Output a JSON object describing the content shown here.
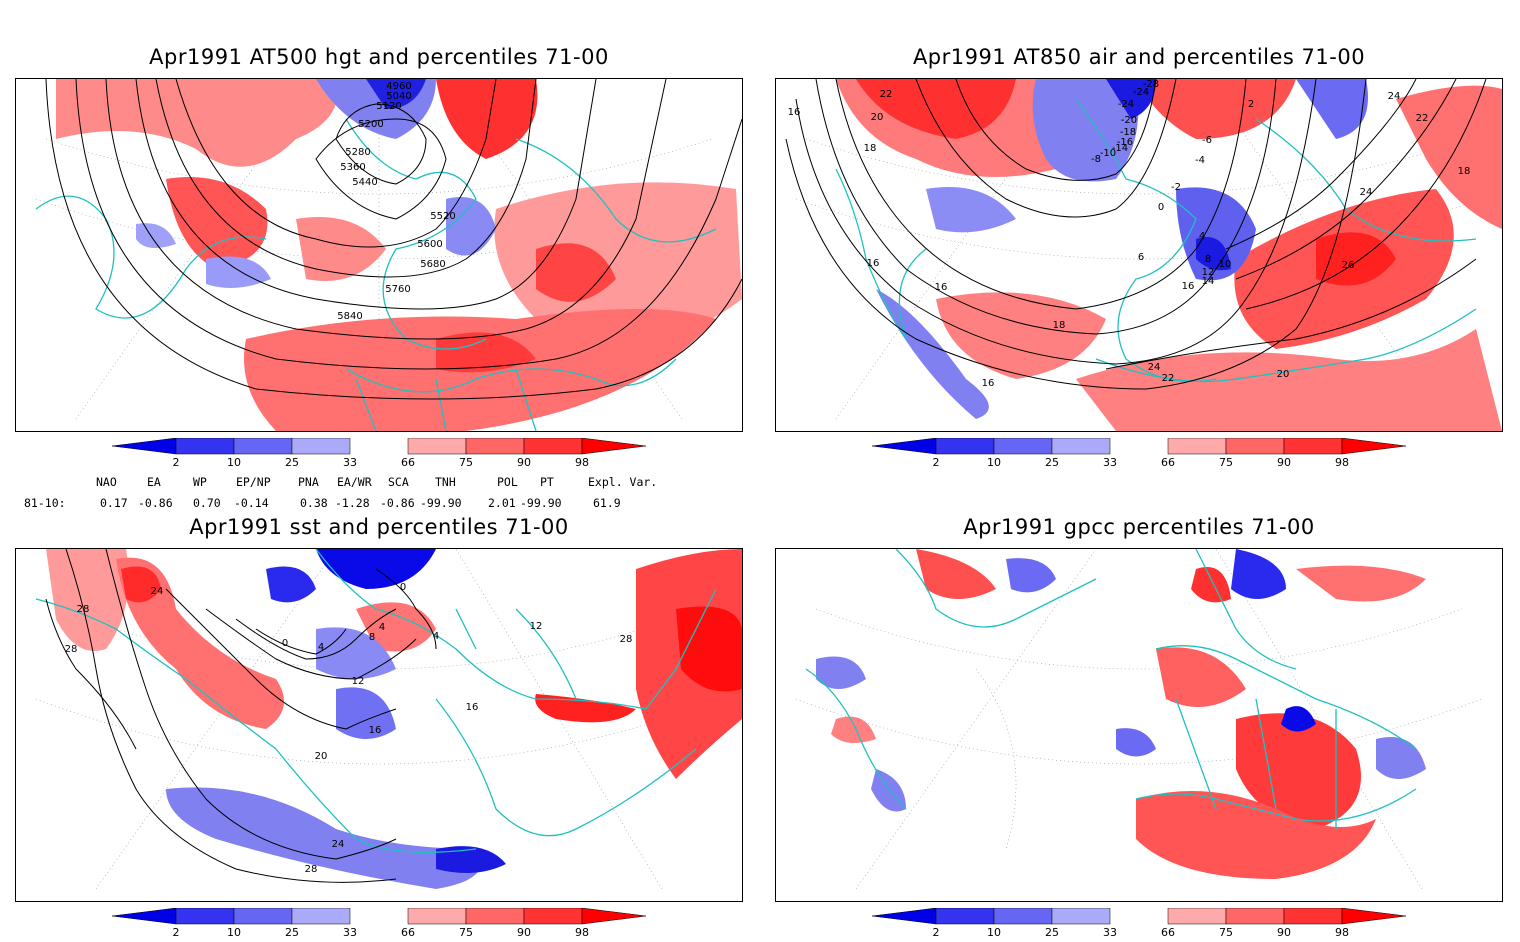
{
  "panels": [
    {
      "title": "Apr1991 AT500 hgt and percentiles 71-00",
      "contour_labels": [
        "4960",
        "5040",
        "5120",
        "5200",
        "5280",
        "5360",
        "5440",
        "5520",
        "5600",
        "5680",
        "5760",
        "5840"
      ]
    },
    {
      "title": "Apr1991 AT850 air and percentiles 71-00",
      "contour_labels": [
        "16",
        "22",
        "20",
        "18",
        "-28",
        "-24",
        "-24",
        "-20",
        "-18",
        "-16",
        "-14",
        "-10",
        "-8",
        "-6",
        "-4",
        "-2",
        "0",
        "2",
        "4",
        "6",
        "8",
        "10",
        "12",
        "14",
        "16",
        "18",
        "16",
        "16",
        "24",
        "26",
        "24",
        "22",
        "20",
        "18",
        "24",
        "22",
        "16"
      ]
    },
    {
      "title": "Apr1991 sst and percentiles 71-00",
      "contour_labels": [
        "28",
        "28",
        "24",
        "0",
        "0",
        "4",
        "8",
        "4",
        "12",
        "16",
        "16",
        "20",
        "24",
        "28",
        "28",
        "4",
        "12"
      ]
    },
    {
      "title": "Apr1991 gpcc percentiles 71-00",
      "contour_labels": []
    }
  ],
  "colorbar": {
    "labels": [
      "2",
      "10",
      "25",
      "33",
      "66",
      "75",
      "90",
      "98"
    ],
    "colors": {
      "below_2": "#0000e6",
      "2_10": "#3333f0",
      "10_25": "#6666f5",
      "25_33": "#aaaaf8",
      "33_66": "#ffffff",
      "66_75": "#ffaaaa",
      "75_90": "#ff6666",
      "90_98": "#ff3333",
      "above_98": "#ff0000"
    }
  },
  "indices": {
    "headers": [
      "NAO",
      "EA",
      "WP",
      "EP/NP",
      "PNA",
      "EA/WR",
      "SCA",
      "TNH",
      "POL",
      "PT",
      "Expl. Var."
    ],
    "row_label": "81-10:",
    "values": [
      "0.17",
      "-0.86",
      "0.70",
      "-0.14",
      "0.38",
      "-1.28",
      "-0.86",
      "-99.90",
      "2.01",
      "-99.90",
      "61.9"
    ]
  },
  "styles": {
    "coastline_color": "#20c0c0",
    "contour_color": "#000000",
    "grid_color": "#999999"
  }
}
